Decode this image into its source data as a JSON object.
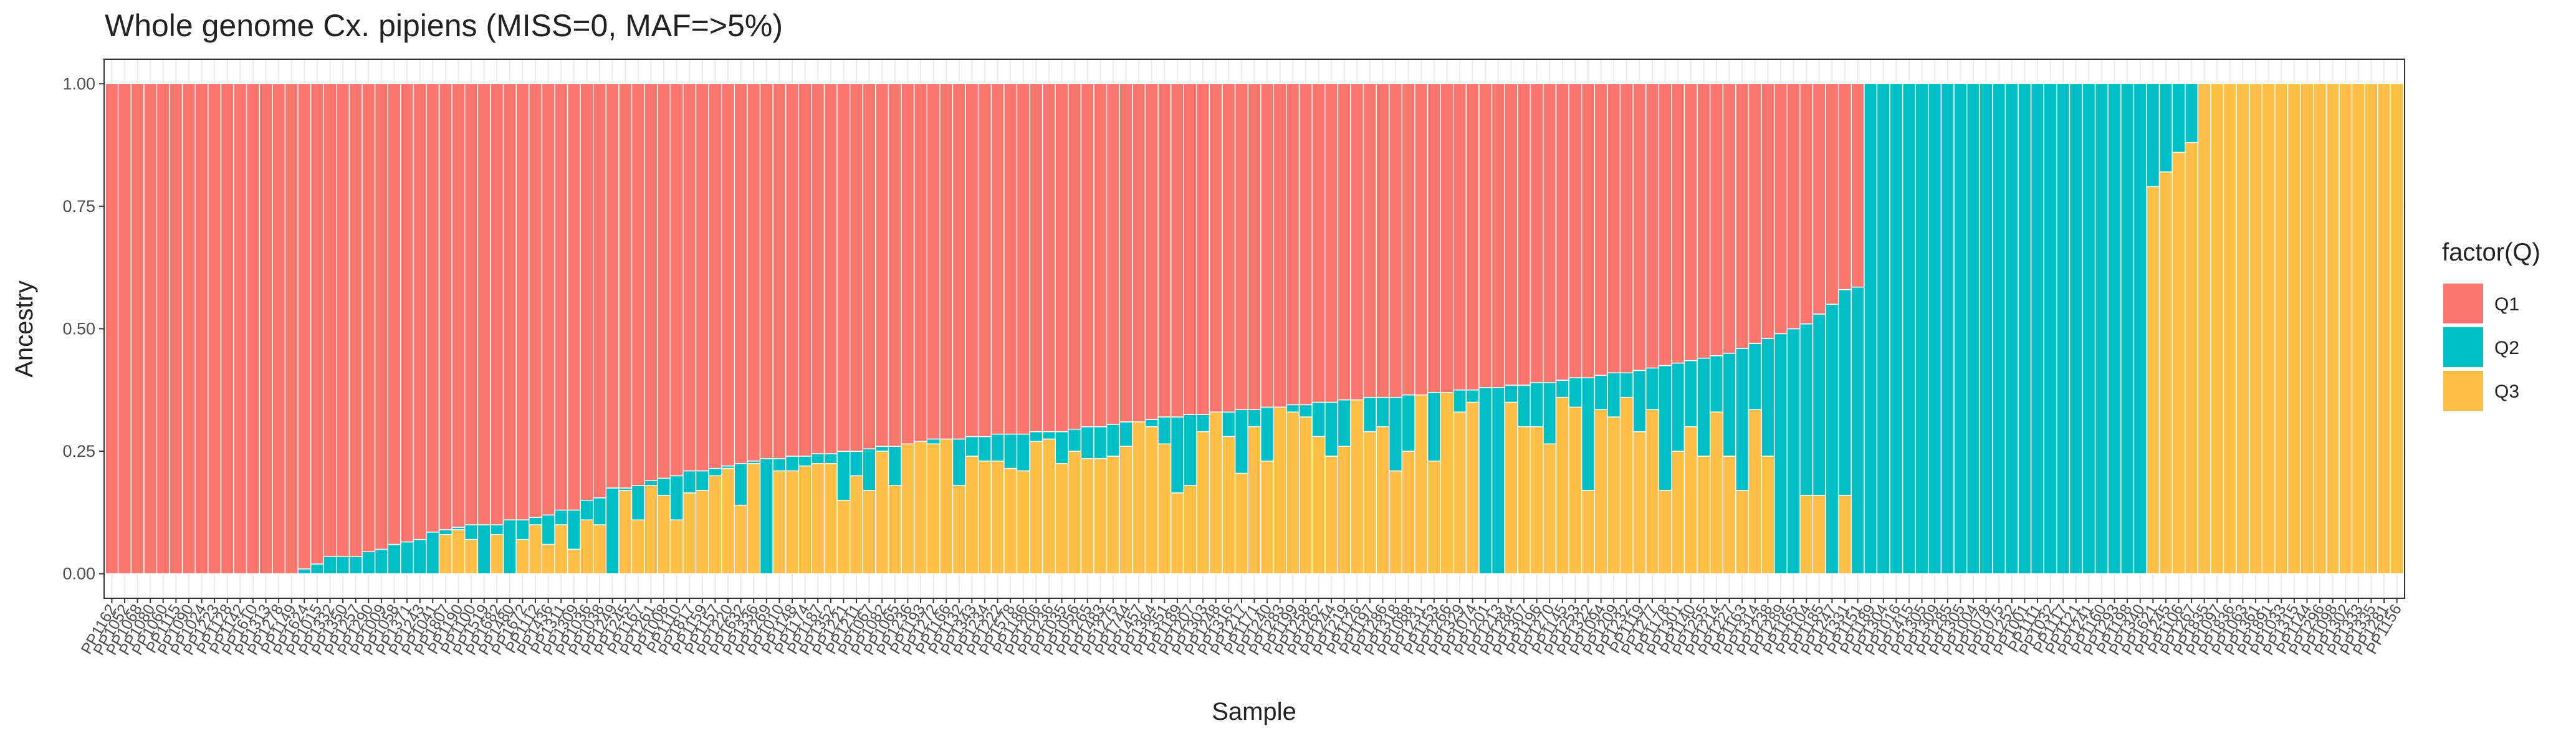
{
  "chart_data": {
    "type": "stacked_bar",
    "title": "Whole genome Cx. pipiens (MISS=0, MAF=>5%)",
    "x_label": "Sample",
    "y_label": "Ancestry",
    "legend_title": "factor(Q)",
    "legend": "right",
    "grid": true,
    "ylim": [
      -0.05,
      1.05
    ],
    "yticks": [
      {
        "value": 0,
        "label": "0.00"
      },
      {
        "value": 0.25,
        "label": "0.25"
      },
      {
        "value": 0.5,
        "label": "0.50"
      },
      {
        "value": 0.75,
        "label": "0.75"
      },
      {
        "value": 1,
        "label": "1.00"
      }
    ],
    "categories": [
      "PP1162",
      "PP1052",
      "PP1068",
      "PP1080",
      "PP1060",
      "PP1115",
      "PP1090",
      "PP1024",
      "PP1223",
      "PP1128",
      "PP1142",
      "PP1610",
      "PP1313",
      "PP1278",
      "PP1149",
      "PP1624",
      "PP1015",
      "PP1332",
      "PP1350",
      "PP1257",
      "PP1290",
      "PP1009",
      "PP1058",
      "PP1371",
      "PP1243",
      "PP1041",
      "PP1807",
      "PP1190",
      "PP1100",
      "PP1519",
      "PP1682",
      "PP1480",
      "PP1672",
      "PP1112",
      "PP1436",
      "PP1311",
      "PP1309",
      "PP1036",
      "PP1038",
      "PP1249",
      "PP1245",
      "PP1167",
      "PP1261",
      "PP1008",
      "PP1110",
      "PP1817",
      "PP1159",
      "PP1157",
      "PP1220",
      "PP1632",
      "PP1336",
      "PP1269",
      "PP1010",
      "PP1148",
      "PP1174",
      "PP1187",
      "PP1352",
      "PP1221",
      "PP1211",
      "PP1067",
      "PP1082",
      "PP1065",
      "PP1236",
      "PP1193",
      "PP1272",
      "PP1166",
      "PP1132",
      "PP1343",
      "PP1234",
      "PP1222",
      "PP1578",
      "PP1186",
      "PP1206",
      "PP1236",
      "PP1035",
      "PP1056",
      "PP1265",
      "PP1483",
      "PP1275",
      "PP1744",
      "PP1457",
      "PP1364",
      "PP1351",
      "PP1189",
      "PP1207",
      "PP1303",
      "PP1248",
      "PP1316",
      "PP1217",
      "PP1171",
      "PP1240",
      "PP1283",
      "PP1199",
      "PP1258",
      "PP1262",
      "PP1244",
      "PP1219",
      "PP1126",
      "PP1197",
      "PP1286",
      "PP1318",
      "PP1088",
      "PP1231",
      "PP1153",
      "PP1266",
      "PP1329",
      "PP1074",
      "PP1201",
      "PP1213",
      "PP1284",
      "PP1307",
      "PP1196",
      "PP1270",
      "PP1145",
      "PP1253",
      "PP1322",
      "PP1094",
      "PP1209",
      "PP1232",
      "PP1119",
      "PP1277",
      "PP1178",
      "PP1301",
      "PP1140",
      "PP1255",
      "PP1214",
      "PP1227",
      "PP1163",
      "PP1314",
      "PP1238",
      "PP1289",
      "PP1165",
      "PP1104",
      "PP1185",
      "PP1247",
      "PP1331",
      "PP1151",
      "PP1189",
      "PP1304",
      "PP1016",
      "PP1415",
      "PP1305",
      "PP1309",
      "PP1285",
      "PP1305",
      "PP1004",
      "PP1078",
      "PP1075",
      "PP1252",
      "PP1001",
      "PP1111",
      "PP1032",
      "PP1117",
      "PP1121",
      "PP1241",
      "PP1160",
      "PP1293",
      "PP1198",
      "PP1340",
      "PP1621",
      "PP1245",
      "PP1106",
      "PP1267",
      "PP1835",
      "PP1097",
      "PP1836",
      "PP1063",
      "PP1361",
      "PP1891",
      "PP1033",
      "PP1315",
      "PP1144",
      "PP1296",
      "PP1098",
      "PP1302",
      "PP1333",
      "PP1335",
      "PP1281",
      "PP1156"
    ],
    "series": [
      {
        "name": "Q1",
        "color": "#F8766D",
        "values": [
          1,
          1,
          1,
          1,
          1,
          1,
          1,
          1,
          1,
          1,
          1,
          1,
          1,
          1,
          1,
          0.99,
          0.98,
          0.965,
          0.965,
          0.965,
          0.955,
          0.95,
          0.94,
          0.935,
          0.93,
          0.915,
          0.91,
          0.905,
          0.9,
          0.9,
          0.9,
          0.89,
          0.89,
          0.885,
          0.88,
          0.87,
          0.87,
          0.85,
          0.845,
          0.825,
          0.825,
          0.82,
          0.81,
          0.805,
          0.8,
          0.79,
          0.79,
          0.785,
          0.78,
          0.775,
          0.77,
          0.765,
          0.765,
          0.76,
          0.76,
          0.755,
          0.755,
          0.75,
          0.75,
          0.745,
          0.74,
          0.74,
          0.735,
          0.73,
          0.725,
          0.725,
          0.725,
          0.72,
          0.72,
          0.715,
          0.715,
          0.715,
          0.71,
          0.71,
          0.71,
          0.705,
          0.7,
          0.7,
          0.695,
          0.69,
          0.69,
          0.685,
          0.68,
          0.68,
          0.675,
          0.675,
          0.67,
          0.67,
          0.665,
          0.665,
          0.66,
          0.66,
          0.655,
          0.655,
          0.65,
          0.65,
          0.645,
          0.645,
          0.64,
          0.64,
          0.64,
          0.635,
          0.635,
          0.63,
          0.63,
          0.625,
          0.625,
          0.62,
          0.62,
          0.615,
          0.615,
          0.61,
          0.61,
          0.605,
          0.6,
          0.6,
          0.595,
          0.59,
          0.59,
          0.585,
          0.58,
          0.575,
          0.57,
          0.565,
          0.56,
          0.555,
          0.55,
          0.54,
          0.53,
          0.52,
          0.51,
          0.5,
          0.49,
          0.47,
          0.45,
          0.42,
          0.415,
          0,
          0,
          0,
          0,
          0,
          0,
          0,
          0,
          0,
          0,
          0,
          0,
          0,
          0,
          0,
          0,
          0,
          0,
          0,
          0,
          0,
          0,
          0,
          0,
          0,
          0,
          0,
          0,
          0,
          0,
          0,
          0,
          0,
          0,
          0,
          0,
          0,
          0,
          0,
          0,
          0,
          0
        ]
      },
      {
        "name": "Q2",
        "color": "#00BFC4",
        "values": [
          0,
          0,
          0,
          0,
          0,
          0,
          0,
          0,
          0,
          0,
          0,
          0,
          0,
          0,
          0,
          0.01,
          0.02,
          0.035,
          0.035,
          0.035,
          0.045,
          0.05,
          0.06,
          0.065,
          0.07,
          0.085,
          0.01,
          0.005,
          0.03,
          0.1,
          0.02,
          0.11,
          0.04,
          0.015,
          0.06,
          0.03,
          0.08,
          0.04,
          0.055,
          0.175,
          0.005,
          0.07,
          0.01,
          0.035,
          0.09,
          0.045,
          0.04,
          0.015,
          0.005,
          0.085,
          0.005,
          0.235,
          0.025,
          0.03,
          0.02,
          0.02,
          0.02,
          0.1,
          0.05,
          0.085,
          0.01,
          0.08,
          0,
          0,
          0.01,
          0,
          0.095,
          0.04,
          0.05,
          0.055,
          0.07,
          0.075,
          0.02,
          0.015,
          0.065,
          0.045,
          0.065,
          0.065,
          0.065,
          0.05,
          0,
          0.015,
          0.055,
          0.155,
          0.145,
          0.035,
          0,
          0.05,
          0.13,
          0.035,
          0.11,
          0,
          0.015,
          0.025,
          0.07,
          0.11,
          0.095,
          0,
          0.07,
          0.06,
          0.15,
          0.115,
          0,
          0.14,
          0,
          0.045,
          0.025,
          0.38,
          0.38,
          0.035,
          0.085,
          0.09,
          0.125,
          0.035,
          0.06,
          0.23,
          0.07,
          0.09,
          0.05,
          0.125,
          0.085,
          0.255,
          0.18,
          0.135,
          0.2,
          0.115,
          0.21,
          0.29,
          0.135,
          0.24,
          0.49,
          0.5,
          0.35,
          0.37,
          0.55,
          0.42,
          0.585,
          1,
          1,
          1,
          1,
          1,
          1,
          1,
          1,
          1,
          1,
          1,
          1,
          1,
          1,
          1,
          1,
          1,
          1,
          1,
          1,
          1,
          1,
          0.21,
          0.18,
          0.14,
          0.12,
          0,
          0,
          0,
          0,
          0,
          0,
          0,
          0,
          0,
          0,
          0,
          0,
          0,
          0,
          0,
          0
        ]
      },
      {
        "name": "Q3",
        "color": "#FFBE45",
        "values": [
          0,
          0,
          0,
          0,
          0,
          0,
          0,
          0,
          0,
          0,
          0,
          0,
          0,
          0,
          0,
          0,
          0,
          0,
          0,
          0,
          0,
          0,
          0,
          0,
          0,
          0,
          0.08,
          0.09,
          0.07,
          0,
          0.08,
          0,
          0.07,
          0.1,
          0.06,
          0.1,
          0.05,
          0.11,
          0.1,
          0,
          0.17,
          0.11,
          0.18,
          0.16,
          0.11,
          0.165,
          0.17,
          0.2,
          0.215,
          0.14,
          0.225,
          0,
          0.21,
          0.21,
          0.22,
          0.225,
          0.225,
          0.15,
          0.2,
          0.17,
          0.25,
          0.18,
          0.265,
          0.27,
          0.265,
          0.275,
          0.18,
          0.24,
          0.23,
          0.23,
          0.215,
          0.21,
          0.27,
          0.275,
          0.225,
          0.25,
          0.235,
          0.235,
          0.24,
          0.26,
          0.31,
          0.3,
          0.265,
          0.165,
          0.18,
          0.29,
          0.33,
          0.28,
          0.205,
          0.3,
          0.23,
          0.34,
          0.33,
          0.32,
          0.28,
          0.24,
          0.26,
          0.355,
          0.29,
          0.3,
          0.21,
          0.25,
          0.365,
          0.23,
          0.37,
          0.33,
          0.35,
          0,
          0,
          0.35,
          0.3,
          0.3,
          0.265,
          0.36,
          0.34,
          0.17,
          0.335,
          0.32,
          0.36,
          0.29,
          0.335,
          0.17,
          0.25,
          0.3,
          0.24,
          0.33,
          0.24,
          0.17,
          0.335,
          0.24,
          0,
          0,
          0.16,
          0.16,
          0,
          0.16,
          0,
          0,
          0,
          0,
          0,
          0,
          0,
          0,
          0,
          0,
          0,
          0,
          0,
          0,
          0,
          0,
          0,
          0,
          0,
          0,
          0,
          0,
          0,
          0.79,
          0.82,
          0.86,
          0.88,
          1,
          1,
          1,
          1,
          1,
          1,
          1,
          1,
          1,
          1,
          1,
          1,
          1,
          1,
          1,
          1
        ]
      }
    ]
  }
}
